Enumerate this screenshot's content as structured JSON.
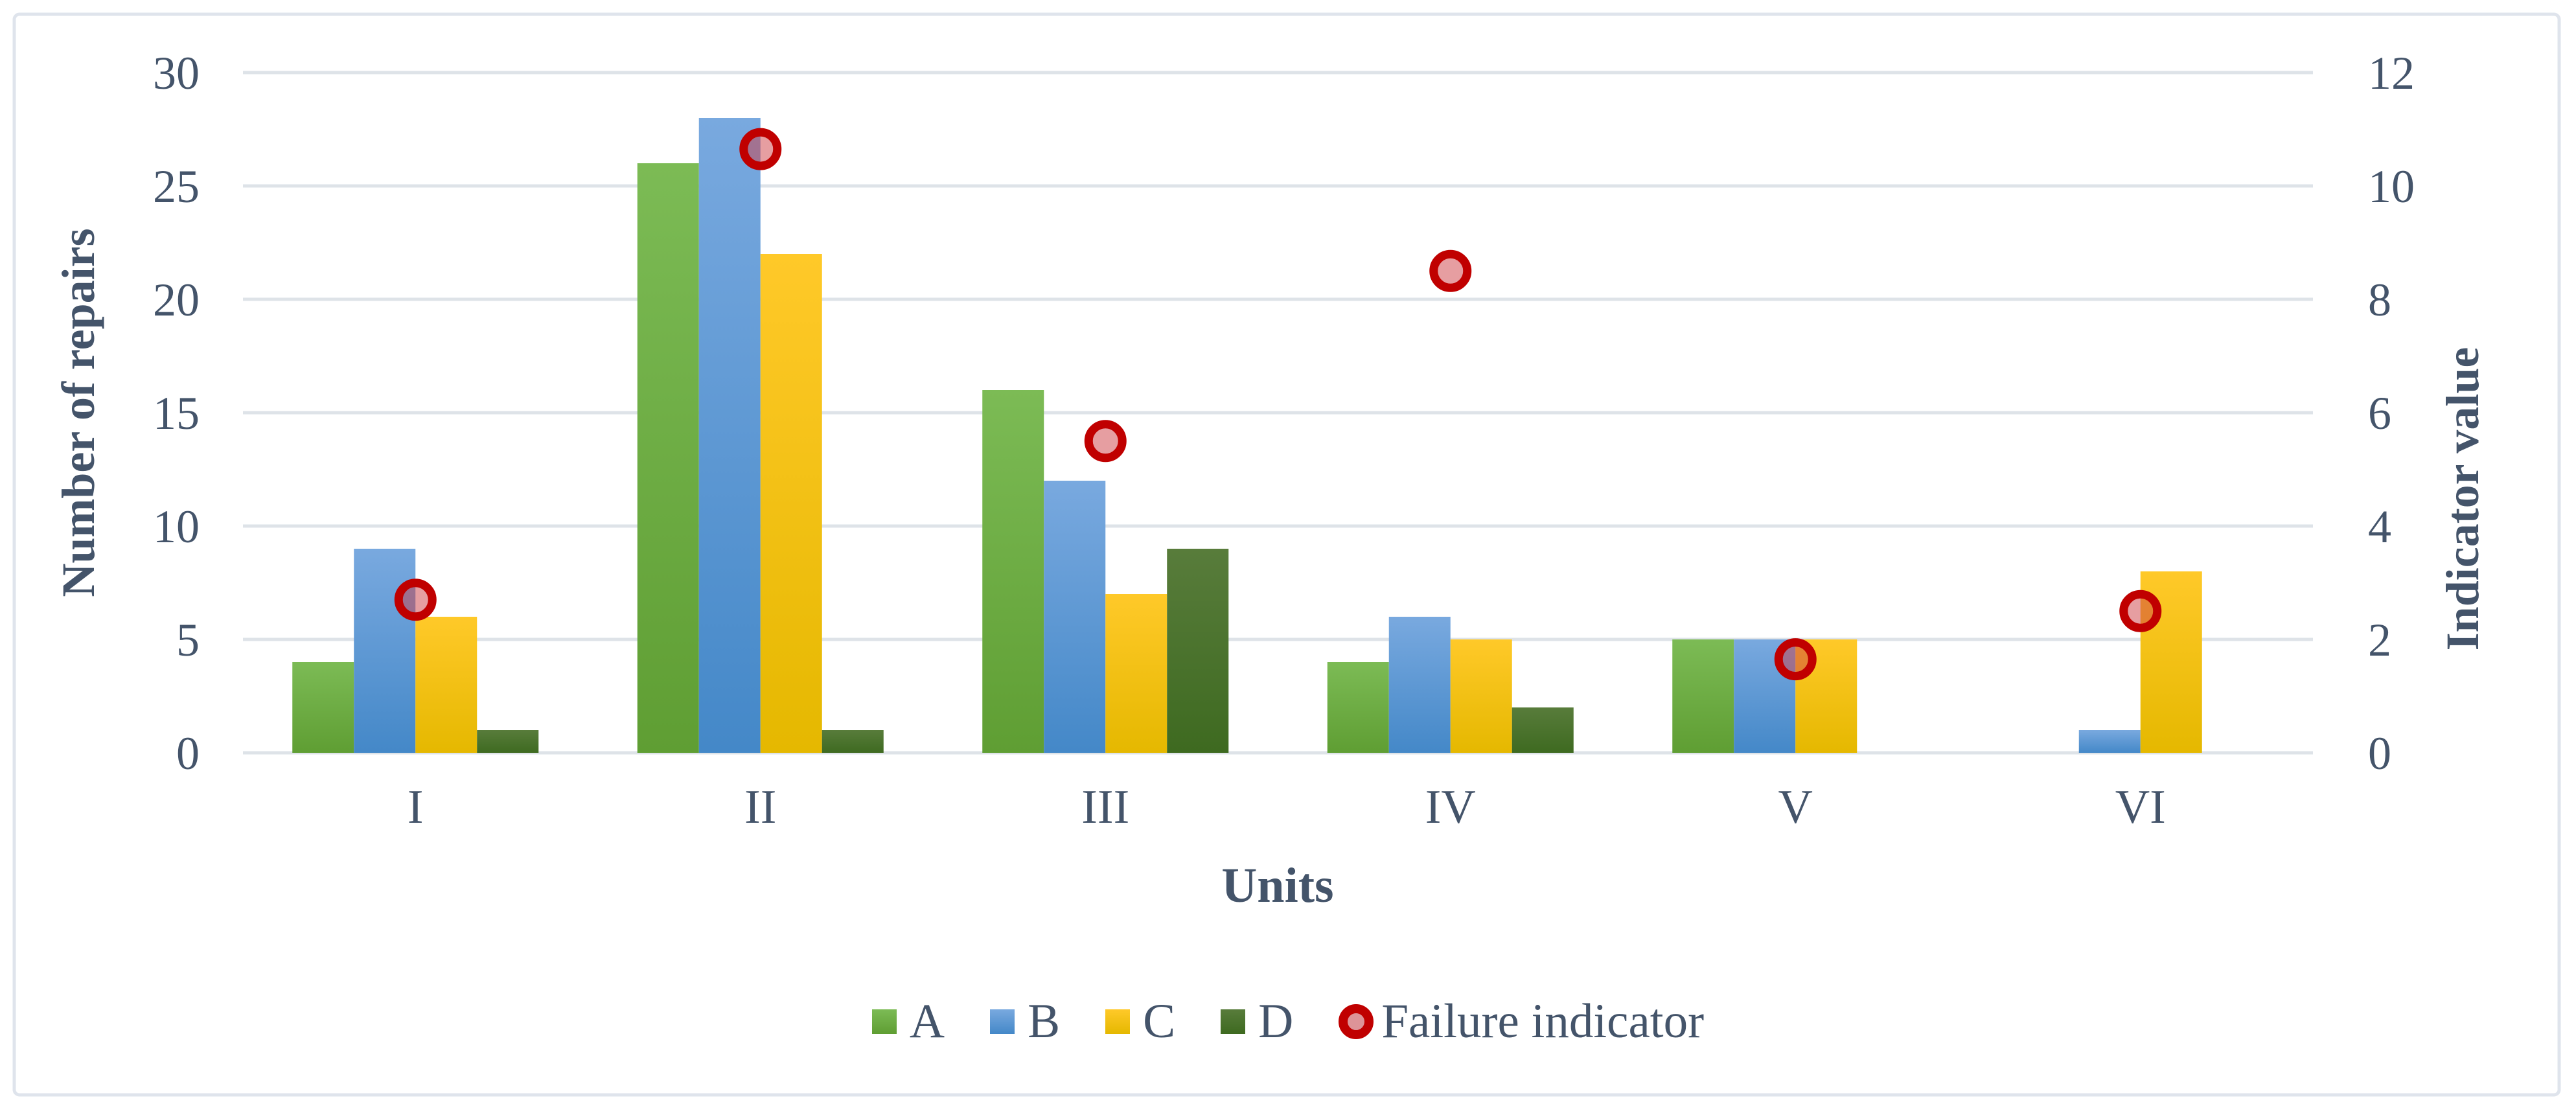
{
  "chart_data": {
    "type": "combo-bar-scatter",
    "categories": [
      "I",
      "II",
      "III",
      "IV",
      "V",
      "VI"
    ],
    "bar_series": [
      {
        "name": "A",
        "values": [
          4,
          26,
          16,
          4,
          5,
          0
        ],
        "color_top": "#7CBB55",
        "color_bottom": "#5F9E33"
      },
      {
        "name": "B",
        "values": [
          9,
          28,
          12,
          6,
          5,
          1
        ],
        "color_top": "#79A9DF",
        "color_bottom": "#4488C8"
      },
      {
        "name": "C",
        "values": [
          6,
          22,
          7,
          5,
          5,
          8
        ],
        "color_top": "#FFC929",
        "color_bottom": "#E5B800"
      },
      {
        "name": "D",
        "values": [
          1,
          1,
          9,
          2,
          0,
          0
        ],
        "color_top": "#587C3B",
        "color_bottom": "#3E6A20"
      }
    ],
    "scatter_series": {
      "name": "Failure indicator",
      "axis": "right",
      "values": [
        2.7,
        10.65,
        5.5,
        8.5,
        1.65,
        2.5
      ],
      "ring_color": "#C00000",
      "fill_color": "rgba(205,62,68,0.5)"
    },
    "left_axis": {
      "title": "Number of repairs",
      "min": 0,
      "max": 30,
      "step": 5,
      "tick_labels": [
        "0",
        "5",
        "10",
        "15",
        "20",
        "25",
        "30"
      ]
    },
    "right_axis": {
      "title": "Indicator value",
      "min": 0,
      "max": 12,
      "step": 2,
      "tick_labels": [
        "0",
        "2",
        "4",
        "6",
        "8",
        "10",
        "12"
      ]
    },
    "x_axis": {
      "title": "Units"
    },
    "legend": {
      "items": [
        "A",
        "B",
        "C",
        "D",
        "Failure indicator"
      ]
    },
    "grid": true,
    "legend_position": "bottom",
    "styles": {
      "text_color": "#44546A",
      "grid_color": "#DEE3E8",
      "frame_border": "#DFE4EC",
      "background": "#FFFFFF"
    }
  }
}
